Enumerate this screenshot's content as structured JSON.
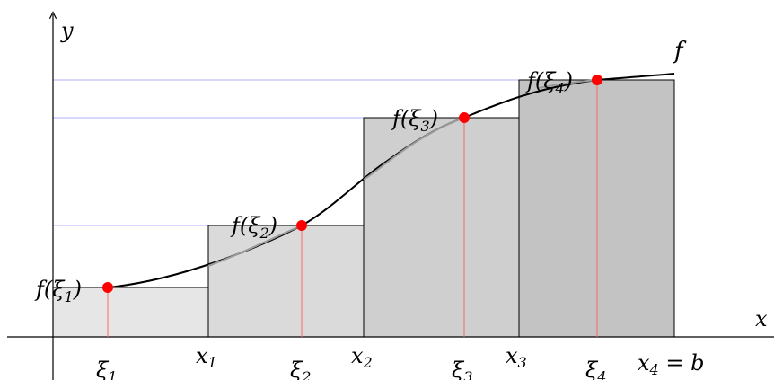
{
  "axes": {
    "x_label": "x",
    "y_label": "y"
  },
  "curve": {
    "label": "f",
    "color": "#000000"
  },
  "rectangles": [
    {
      "fill": "#e6e6e6"
    },
    {
      "fill": "#dadada"
    },
    {
      "fill": "#cfcfcf"
    },
    {
      "fill": "#c3c3c3"
    }
  ],
  "x_ticks": [
    {
      "base": "x",
      "sub": "1",
      "suffix": ""
    },
    {
      "base": "x",
      "sub": "2",
      "suffix": ""
    },
    {
      "base": "x",
      "sub": "3",
      "suffix": ""
    },
    {
      "base": "x",
      "sub": "4",
      "suffix": " = b"
    }
  ],
  "sample_points": [
    {
      "xi_base": "ξ",
      "xi_sub": "1",
      "fx_prefix": "f(",
      "fx_base": "ξ",
      "fx_sub": "1",
      "fx_suffix": ")"
    },
    {
      "xi_base": "ξ",
      "xi_sub": "2",
      "fx_prefix": "f(",
      "fx_base": "ξ",
      "fx_sub": "2",
      "fx_suffix": ")"
    },
    {
      "xi_base": "ξ",
      "xi_sub": "3",
      "fx_prefix": "f(",
      "fx_base": "ξ",
      "fx_sub": "3",
      "fx_suffix": ")"
    },
    {
      "xi_base": "ξ",
      "xi_sub": "4",
      "fx_prefix": "f(",
      "fx_base": "ξ",
      "fx_sub": "4",
      "fx_suffix": ")"
    }
  ],
  "colors": {
    "point": "#ff0000",
    "stem": "#ff6666",
    "guide": "#b0b0ff",
    "axis": "#000000"
  }
}
